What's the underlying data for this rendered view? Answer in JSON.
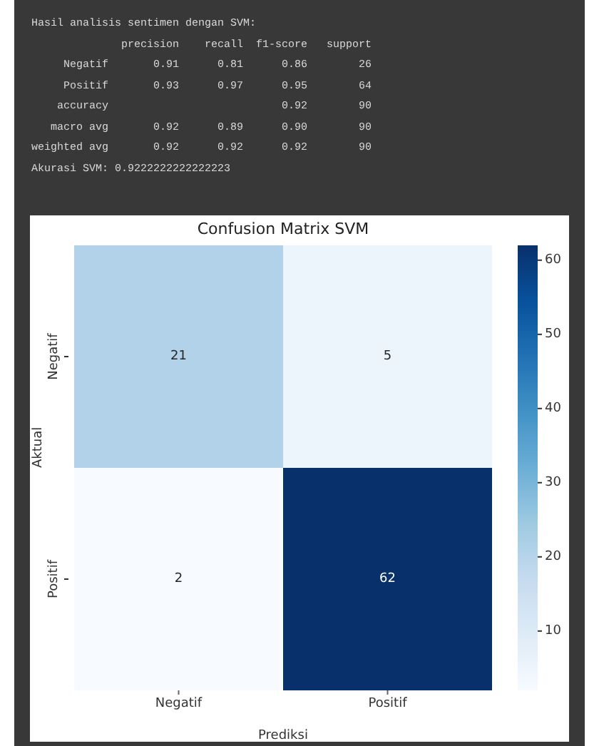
{
  "chart_data": {
    "type": "heatmap",
    "title": "Confusion Matrix SVM",
    "xlabel": "Prediksi",
    "ylabel": "Aktual",
    "categories": [
      "Negatif",
      "Positif"
    ],
    "y_categories": [
      "Negatif",
      "Positif"
    ],
    "cells": [
      [
        21,
        5
      ],
      [
        2,
        62
      ]
    ],
    "data_labels": true,
    "clim": [
      2,
      62
    ],
    "cticks": [
      10,
      20,
      30,
      40,
      50,
      60
    ],
    "annotations": [
      "Hasil analisis sentimen dengan SVM:",
      "              precision    recall  f1-score   support",
      "     Negatif       0.91      0.81      0.86        26",
      "     Positif       0.93      0.97      0.95        64",
      "    accuracy                           0.92        90",
      "   macro avg       0.92      0.89      0.90        90",
      "weighted avg       0.92      0.92      0.92        90",
      "Akurasi SVM: 0.9222222222222223"
    ]
  }
}
